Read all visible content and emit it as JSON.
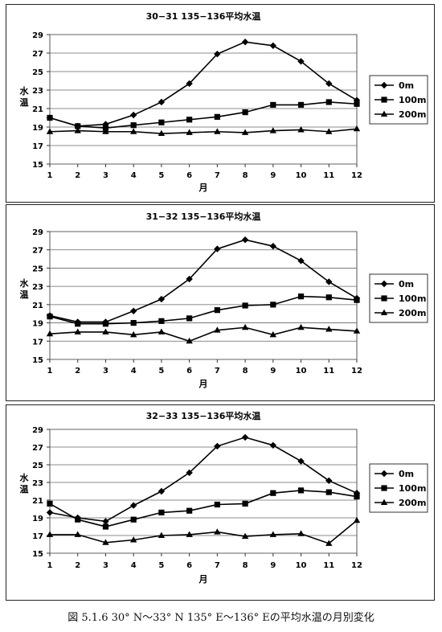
{
  "figure_caption": "図 5.1.6 30° N～33° N 135° E～136° Eの平均水温の月別変化",
  "chart_data": [
    {
      "type": "line",
      "title": "30−31 135−136平均水温",
      "xlabel": "月",
      "ylabel": "水温",
      "x": [
        1,
        2,
        3,
        4,
        5,
        6,
        7,
        8,
        9,
        10,
        11,
        12
      ],
      "yticks": [
        15,
        17,
        19,
        21,
        23,
        25,
        27,
        29
      ],
      "ylim": [
        15,
        29
      ],
      "xlim": [
        1,
        12
      ],
      "grid": "horizontal",
      "legend_position": "right",
      "series": [
        {
          "name": "0m",
          "marker": "diamond",
          "values": [
            20.0,
            19.1,
            19.3,
            20.3,
            21.7,
            23.7,
            26.9,
            28.2,
            27.8,
            26.1,
            23.7,
            21.9
          ]
        },
        {
          "name": "100m",
          "marker": "square",
          "values": [
            20.0,
            19.1,
            18.9,
            19.2,
            19.5,
            19.8,
            20.1,
            20.6,
            21.4,
            21.4,
            21.7,
            21.5
          ]
        },
        {
          "name": "200m",
          "marker": "triangle",
          "values": [
            18.5,
            18.6,
            18.5,
            18.5,
            18.3,
            18.4,
            18.5,
            18.4,
            18.6,
            18.7,
            18.5,
            18.8
          ]
        }
      ]
    },
    {
      "type": "line",
      "title": "31−32 135−136平均水温",
      "xlabel": "月",
      "ylabel": "水温",
      "x": [
        1,
        2,
        3,
        4,
        5,
        6,
        7,
        8,
        9,
        10,
        11,
        12
      ],
      "yticks": [
        15,
        17,
        19,
        21,
        23,
        25,
        27,
        29
      ],
      "ylim": [
        15,
        29
      ],
      "xlim": [
        1,
        12
      ],
      "grid": "horizontal",
      "legend_position": "right",
      "series": [
        {
          "name": "0m",
          "marker": "diamond",
          "values": [
            19.8,
            19.1,
            19.1,
            20.3,
            21.6,
            23.8,
            27.1,
            28.1,
            27.4,
            25.8,
            23.5,
            21.7
          ]
        },
        {
          "name": "100m",
          "marker": "square",
          "values": [
            19.7,
            18.9,
            18.9,
            19.0,
            19.2,
            19.5,
            20.4,
            20.9,
            21.0,
            21.9,
            21.8,
            21.5
          ]
        },
        {
          "name": "200m",
          "marker": "triangle",
          "values": [
            17.8,
            18.0,
            18.0,
            17.7,
            18.0,
            17.0,
            18.2,
            18.5,
            17.7,
            18.5,
            18.3,
            18.1
          ]
        }
      ]
    },
    {
      "type": "line",
      "title": "32−33 135−136平均水温",
      "xlabel": "月",
      "ylabel": "水温",
      "x": [
        1,
        2,
        3,
        4,
        5,
        6,
        7,
        8,
        9,
        10,
        11,
        12
      ],
      "yticks": [
        15,
        17,
        19,
        21,
        23,
        25,
        27,
        29
      ],
      "ylim": [
        15,
        29
      ],
      "xlim": [
        1,
        12
      ],
      "grid": "horizontal",
      "legend_position": "right",
      "series": [
        {
          "name": "0m",
          "marker": "diamond",
          "values": [
            19.6,
            19.0,
            18.6,
            20.4,
            22.0,
            24.1,
            27.1,
            28.1,
            27.2,
            25.4,
            23.2,
            21.8
          ]
        },
        {
          "name": "100m",
          "marker": "square",
          "values": [
            20.6,
            18.8,
            18.0,
            18.8,
            19.6,
            19.8,
            20.5,
            20.6,
            21.8,
            22.1,
            21.9,
            21.4
          ]
        },
        {
          "name": "200m",
          "marker": "triangle",
          "values": [
            17.1,
            17.1,
            16.2,
            16.5,
            17.0,
            17.1,
            17.4,
            16.9,
            17.1,
            17.2,
            16.1,
            18.7
          ]
        }
      ]
    }
  ]
}
